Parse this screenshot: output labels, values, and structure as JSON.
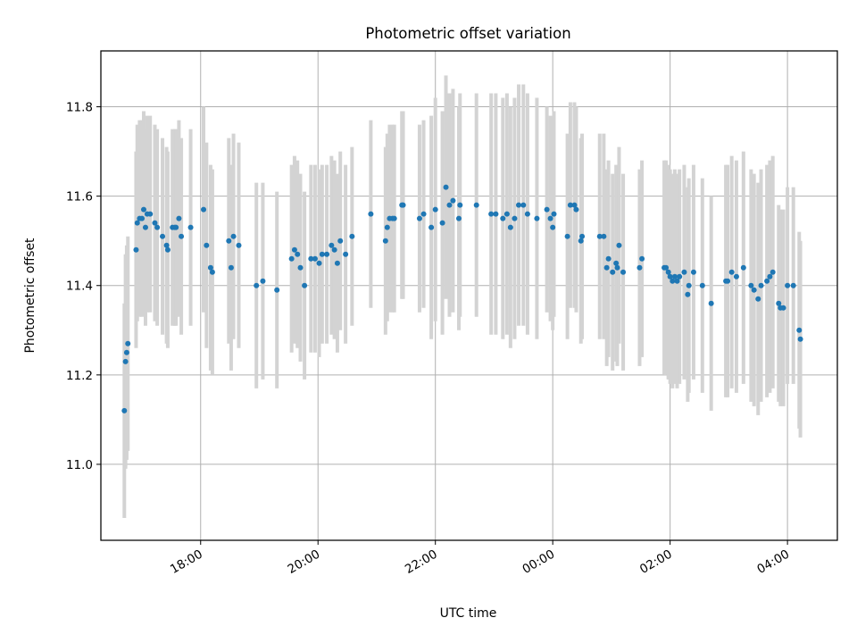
{
  "chart_data": {
    "type": "scatter",
    "title": "Photometric offset variation",
    "xlabel": "UTC time",
    "ylabel": "Photometric offset",
    "x_unit": "hours from 00:00 of the start day; ticks labelled as clock time",
    "x_ticks": [
      {
        "value": 18,
        "label": "18:00"
      },
      {
        "value": 20,
        "label": "20:00"
      },
      {
        "value": 22,
        "label": "22:00"
      },
      {
        "value": 24,
        "label": "00:00"
      },
      {
        "value": 26,
        "label": "02:00"
      },
      {
        "value": 28,
        "label": "04:00"
      }
    ],
    "y_ticks": [
      {
        "value": 11.0,
        "label": "11.0"
      },
      {
        "value": 11.2,
        "label": "11.2"
      },
      {
        "value": 11.4,
        "label": "11.4"
      },
      {
        "value": 11.6,
        "label": "11.6"
      },
      {
        "value": 11.8,
        "label": "11.8"
      }
    ],
    "xlim": [
      16.3,
      28.85
    ],
    "ylim": [
      10.83,
      11.925
    ],
    "grid": true,
    "point_color": "#1f77b4",
    "errorbar_color": "#d3d3d3",
    "frame_color": "#000000",
    "grid_color": "#b0b0b0",
    "points": [
      [
        16.7,
        11.12,
        0.24
      ],
      [
        16.72,
        11.23,
        0.24
      ],
      [
        16.74,
        11.25,
        0.24
      ],
      [
        16.76,
        11.27,
        0.24
      ],
      [
        16.9,
        11.48,
        0.22
      ],
      [
        16.92,
        11.54,
        0.22
      ],
      [
        16.96,
        11.55,
        0.22
      ],
      [
        17.0,
        11.55,
        0.22
      ],
      [
        17.03,
        11.57,
        0.22
      ],
      [
        17.06,
        11.53,
        0.22
      ],
      [
        17.09,
        11.56,
        0.22
      ],
      [
        17.14,
        11.56,
        0.22
      ],
      [
        17.22,
        11.54,
        0.22
      ],
      [
        17.26,
        11.53,
        0.22
      ],
      [
        17.35,
        11.51,
        0.22
      ],
      [
        17.42,
        11.49,
        0.22
      ],
      [
        17.44,
        11.48,
        0.22
      ],
      [
        17.52,
        11.53,
        0.22
      ],
      [
        17.56,
        11.53,
        0.22
      ],
      [
        17.58,
        11.53,
        0.22
      ],
      [
        17.63,
        11.55,
        0.22
      ],
      [
        17.67,
        11.51,
        0.22
      ],
      [
        17.83,
        11.53,
        0.22
      ],
      [
        18.05,
        11.57,
        0.23
      ],
      [
        18.1,
        11.49,
        0.23
      ],
      [
        18.17,
        11.44,
        0.23
      ],
      [
        18.2,
        11.43,
        0.23
      ],
      [
        18.48,
        11.5,
        0.23
      ],
      [
        18.52,
        11.44,
        0.23
      ],
      [
        18.56,
        11.51,
        0.23
      ],
      [
        18.65,
        11.49,
        0.23
      ],
      [
        18.95,
        11.4,
        0.23
      ],
      [
        19.06,
        11.41,
        0.22
      ],
      [
        19.3,
        11.39,
        0.22
      ],
      [
        19.55,
        11.46,
        0.21
      ],
      [
        19.6,
        11.48,
        0.21
      ],
      [
        19.65,
        11.47,
        0.21
      ],
      [
        19.7,
        11.44,
        0.21
      ],
      [
        19.77,
        11.4,
        0.21
      ],
      [
        19.88,
        11.46,
        0.21
      ],
      [
        19.95,
        11.46,
        0.21
      ],
      [
        20.02,
        11.45,
        0.21
      ],
      [
        20.07,
        11.47,
        0.2
      ],
      [
        20.15,
        11.47,
        0.2
      ],
      [
        20.23,
        11.49,
        0.2
      ],
      [
        20.28,
        11.48,
        0.2
      ],
      [
        20.33,
        11.45,
        0.2
      ],
      [
        20.38,
        11.5,
        0.2
      ],
      [
        20.47,
        11.47,
        0.2
      ],
      [
        20.58,
        11.51,
        0.2
      ],
      [
        20.9,
        11.56,
        0.21
      ],
      [
        21.15,
        11.5,
        0.21
      ],
      [
        21.18,
        11.53,
        0.21
      ],
      [
        21.22,
        11.55,
        0.21
      ],
      [
        21.27,
        11.55,
        0.21
      ],
      [
        21.3,
        11.55,
        0.21
      ],
      [
        21.43,
        11.58,
        0.21
      ],
      [
        21.45,
        11.58,
        0.21
      ],
      [
        21.73,
        11.55,
        0.21
      ],
      [
        21.8,
        11.56,
        0.21
      ],
      [
        21.93,
        11.53,
        0.25
      ],
      [
        22.0,
        11.57,
        0.25
      ],
      [
        22.12,
        11.54,
        0.25
      ],
      [
        22.18,
        11.62,
        0.25
      ],
      [
        22.24,
        11.58,
        0.25
      ],
      [
        22.3,
        11.59,
        0.25
      ],
      [
        22.4,
        11.55,
        0.25
      ],
      [
        22.42,
        11.58,
        0.25
      ],
      [
        22.7,
        11.58,
        0.25
      ],
      [
        22.95,
        11.56,
        0.27
      ],
      [
        23.03,
        11.56,
        0.27
      ],
      [
        23.15,
        11.55,
        0.27
      ],
      [
        23.22,
        11.56,
        0.27
      ],
      [
        23.28,
        11.53,
        0.27
      ],
      [
        23.35,
        11.55,
        0.27
      ],
      [
        23.42,
        11.58,
        0.27
      ],
      [
        23.5,
        11.58,
        0.27
      ],
      [
        23.57,
        11.56,
        0.27
      ],
      [
        23.73,
        11.55,
        0.27
      ],
      [
        23.9,
        11.57,
        0.23
      ],
      [
        23.96,
        11.55,
        0.23
      ],
      [
        24.0,
        11.53,
        0.23
      ],
      [
        24.02,
        11.56,
        0.23
      ],
      [
        24.25,
        11.51,
        0.23
      ],
      [
        24.3,
        11.58,
        0.23
      ],
      [
        24.37,
        11.58,
        0.23
      ],
      [
        24.4,
        11.57,
        0.23
      ],
      [
        24.48,
        11.5,
        0.23
      ],
      [
        24.5,
        11.51,
        0.23
      ],
      [
        24.8,
        11.51,
        0.23
      ],
      [
        24.87,
        11.51,
        0.23
      ],
      [
        24.92,
        11.44,
        0.22
      ],
      [
        24.95,
        11.46,
        0.22
      ],
      [
        25.02,
        11.43,
        0.22
      ],
      [
        25.08,
        11.45,
        0.22
      ],
      [
        25.1,
        11.44,
        0.22
      ],
      [
        25.13,
        11.49,
        0.22
      ],
      [
        25.2,
        11.43,
        0.22
      ],
      [
        25.48,
        11.44,
        0.22
      ],
      [
        25.52,
        11.46,
        0.22
      ],
      [
        25.9,
        11.44,
        0.24
      ],
      [
        25.93,
        11.44,
        0.24
      ],
      [
        25.97,
        11.43,
        0.24
      ],
      [
        26.0,
        11.42,
        0.24
      ],
      [
        26.04,
        11.41,
        0.24
      ],
      [
        26.08,
        11.42,
        0.24
      ],
      [
        26.12,
        11.41,
        0.24
      ],
      [
        26.16,
        11.42,
        0.24
      ],
      [
        26.24,
        11.43,
        0.24
      ],
      [
        26.3,
        11.38,
        0.24
      ],
      [
        26.32,
        11.4,
        0.24
      ],
      [
        26.4,
        11.43,
        0.24
      ],
      [
        26.55,
        11.4,
        0.24
      ],
      [
        26.7,
        11.36,
        0.24
      ],
      [
        26.95,
        11.41,
        0.26
      ],
      [
        26.98,
        11.41,
        0.26
      ],
      [
        27.05,
        11.43,
        0.26
      ],
      [
        27.13,
        11.42,
        0.26
      ],
      [
        27.25,
        11.44,
        0.26
      ],
      [
        27.38,
        11.4,
        0.26
      ],
      [
        27.43,
        11.39,
        0.26
      ],
      [
        27.5,
        11.37,
        0.26
      ],
      [
        27.55,
        11.4,
        0.26
      ],
      [
        27.65,
        11.41,
        0.26
      ],
      [
        27.7,
        11.42,
        0.26
      ],
      [
        27.75,
        11.43,
        0.26
      ],
      [
        27.85,
        11.36,
        0.22
      ],
      [
        27.88,
        11.35,
        0.22
      ],
      [
        27.93,
        11.35,
        0.22
      ],
      [
        28.0,
        11.4,
        0.22
      ],
      [
        28.1,
        11.4,
        0.22
      ],
      [
        28.2,
        11.3,
        0.22
      ],
      [
        28.22,
        11.28,
        0.22
      ]
    ]
  }
}
